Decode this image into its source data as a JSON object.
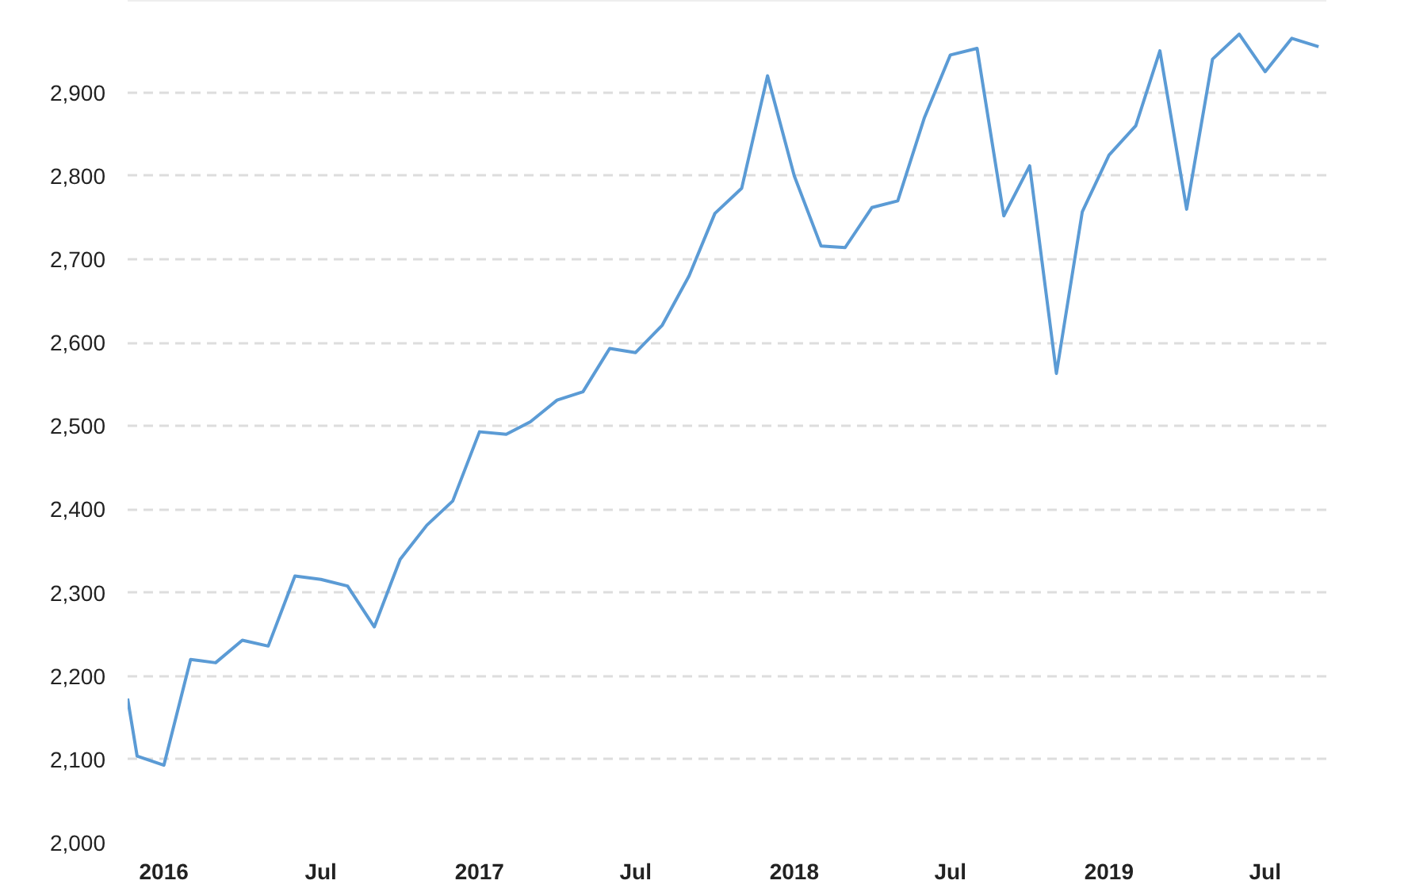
{
  "chart_data": {
    "type": "line",
    "x": [
      "2015-11-20",
      "2015-12",
      "2016-01",
      "2016-02",
      "2016-03",
      "2016-04",
      "2016-05",
      "2016-06",
      "2016-07",
      "2016-08",
      "2016-09",
      "2016-10",
      "2016-11",
      "2016-12",
      "2017-01",
      "2017-02",
      "2017-03",
      "2017-04",
      "2017-05",
      "2017-06",
      "2017-07",
      "2017-08",
      "2017-09",
      "2017-10",
      "2017-11",
      "2017-12",
      "2018-01",
      "2018-02",
      "2018-03",
      "2018-04",
      "2018-05",
      "2018-06",
      "2018-07",
      "2018-08",
      "2018-09",
      "2018-10",
      "2018-11",
      "2018-12",
      "2019-01",
      "2019-02",
      "2019-03",
      "2019-04",
      "2019-05",
      "2019-06",
      "2019-07",
      "2019-08",
      "2019-09"
    ],
    "series": [
      {
        "color": "#5b9bd5",
        "values": [
          2173,
          2104,
          2093,
          2220,
          2216,
          2243,
          2236,
          2320,
          2316,
          2308,
          2259,
          2340,
          2381,
          2410,
          2493,
          2490,
          2505,
          2531,
          2541,
          2593,
          2588,
          2621,
          2680,
          2755,
          2785,
          2920,
          2800,
          2716,
          2714,
          2762,
          2770,
          2870,
          2945,
          2953,
          2752,
          2812,
          2563,
          2757,
          2825,
          2860,
          2950,
          2760,
          2940,
          2970,
          2925,
          2965,
          2955
        ]
      }
    ],
    "xlim": [
      "2015-11-20",
      "2019-09-10"
    ],
    "ylim": [
      2000,
      3010
    ],
    "xticks": [
      {
        "value": "2016-01",
        "label": "2016"
      },
      {
        "value": "2016-07",
        "label": "Jul"
      },
      {
        "value": "2017-01",
        "label": "2017"
      },
      {
        "value": "2017-07",
        "label": "Jul"
      },
      {
        "value": "2018-01",
        "label": "2018"
      },
      {
        "value": "2018-07",
        "label": "Jul"
      },
      {
        "value": "2019-01",
        "label": "2019"
      },
      {
        "value": "2019-07",
        "label": "Jul"
      }
    ],
    "yticks": [
      {
        "value": 2000,
        "label": "2,000"
      },
      {
        "value": 2100,
        "label": "2,100"
      },
      {
        "value": 2200,
        "label": "2,200"
      },
      {
        "value": 2300,
        "label": "2,300"
      },
      {
        "value": 2400,
        "label": "2,400"
      },
      {
        "value": 2500,
        "label": "2,500"
      },
      {
        "value": 2600,
        "label": "2,600"
      },
      {
        "value": 2700,
        "label": "2,700"
      },
      {
        "value": 2800,
        "label": "2,800"
      },
      {
        "value": 2900,
        "label": "2,900"
      }
    ],
    "grid": "y",
    "line_style": "solid"
  }
}
